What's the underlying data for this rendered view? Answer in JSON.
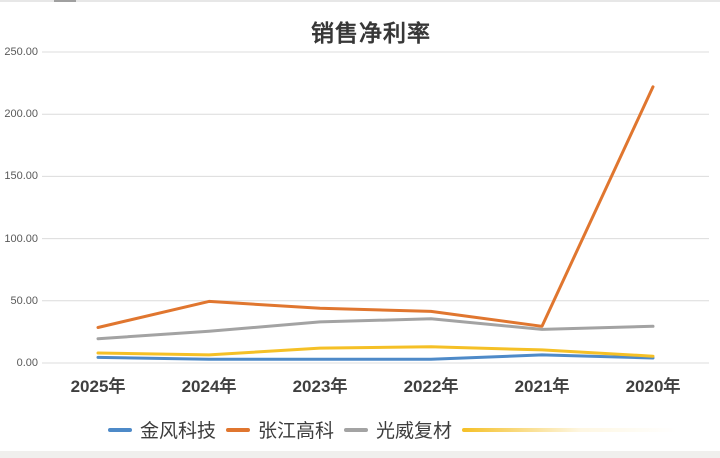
{
  "chart": {
    "title": "销售净利率"
  },
  "axis": {
    "categories": [
      "2025年",
      "2024年",
      "2023年",
      "2022年",
      "2021年",
      "2020年"
    ],
    "yticks": [
      "250.00",
      "200.00",
      "150.00",
      "100.00",
      "50.00",
      "0.00"
    ]
  },
  "legend": {
    "items": [
      {
        "label": "金风科技",
        "color": "#4e8ac8"
      },
      {
        "label": "张江高科",
        "color": "#e0762f"
      },
      {
        "label": "光威复材",
        "color": "#a3a3a3"
      },
      {
        "label": "",
        "color": "#f5c026",
        "faded": true
      }
    ]
  },
  "chart_data": {
    "type": "line",
    "title": "销售净利率",
    "categories": [
      "2025年",
      "2024年",
      "2023年",
      "2022年",
      "2021年",
      "2020年"
    ],
    "series": [
      {
        "name": "金风科技",
        "color": "#4e8ac8",
        "values": [
          4.5,
          3,
          3,
          3,
          6.5,
          4
        ]
      },
      {
        "name": "光威复材",
        "color": "#a3a3a3",
        "values": [
          19.5,
          25.5,
          33,
          35.5,
          27,
          29.5
        ]
      },
      {
        "name": "张江高科",
        "color": "#e0762f",
        "values": [
          28.5,
          49.5,
          44,
          41.5,
          29.5,
          222
        ]
      },
      {
        "name": "",
        "color": "#f5c026",
        "values": [
          8,
          6.5,
          12,
          13,
          10.5,
          5.5
        ]
      }
    ],
    "ylim": [
      0,
      250
    ],
    "ytick_values": [
      250,
      200,
      150,
      100,
      50,
      0
    ],
    "grid": true,
    "legend_position": "bottom",
    "x_axis_note": "years listed right-to-left (2025 at left, 2020 at right)"
  }
}
